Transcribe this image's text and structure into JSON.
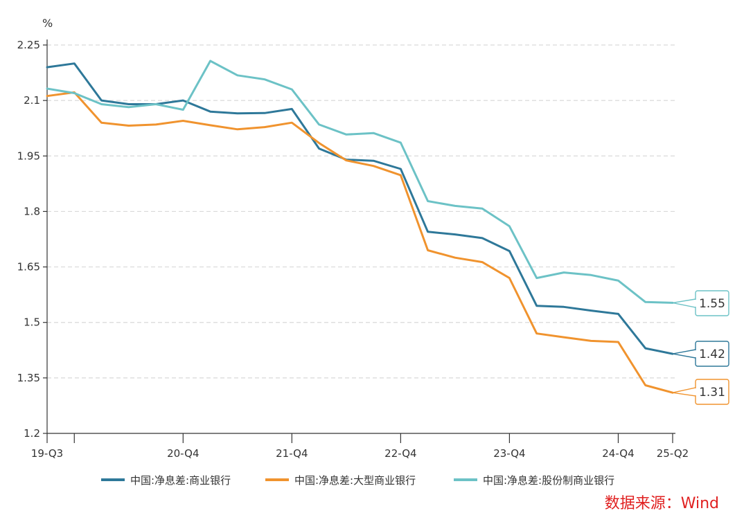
{
  "chart_data": {
    "type": "line",
    "title": "",
    "xlabel": "",
    "ylabel": "",
    "y_unit": "%",
    "ylim": [
      1.2,
      2.25
    ],
    "y_ticks": [
      "1.2",
      "1.35",
      "1.5",
      "1.65",
      "1.8",
      "1.95",
      "2.1",
      "2.25"
    ],
    "grid": true,
    "legend_position": "bottom",
    "source": "数据来源：Wind",
    "categories": [
      "19-Q3",
      "19-Q4",
      "20-Q1",
      "20-Q2",
      "20-Q3",
      "20-Q4",
      "21-Q1",
      "21-Q2",
      "21-Q3",
      "21-Q4",
      "22-Q1",
      "22-Q2",
      "22-Q3",
      "22-Q4",
      "23-Q1",
      "23-Q2",
      "23-Q3",
      "23-Q4",
      "24-Q1",
      "24-Q2",
      "24-Q3",
      "24-Q4",
      "25-Q1",
      "25-Q2"
    ],
    "x_tick_labels": [
      {
        "index": 0,
        "label": "19-Q3"
      },
      {
        "index": 1,
        "label": ""
      },
      {
        "index": 5,
        "label": "20-Q4"
      },
      {
        "index": 9,
        "label": "21-Q4"
      },
      {
        "index": 13,
        "label": "22-Q4"
      },
      {
        "index": 17,
        "label": "23-Q4"
      },
      {
        "index": 21,
        "label": "24-Q4"
      },
      {
        "index": 23,
        "label": "25-Q2"
      }
    ],
    "series": [
      {
        "name": "中国:净息差:商业银行",
        "color": "#2e7899",
        "values": [
          2.19,
          2.2,
          2.1,
          2.09,
          2.09,
          2.1,
          2.07,
          2.065,
          2.066,
          2.077,
          1.97,
          1.94,
          1.937,
          1.915,
          1.745,
          1.738,
          1.728,
          1.693,
          1.545,
          1.542,
          1.532,
          1.523,
          1.43,
          1.415
        ],
        "end_label": "1.42"
      },
      {
        "name": "中国:净息差:大型商业银行",
        "color": "#f0932e",
        "values": [
          2.112,
          2.122,
          2.04,
          2.032,
          2.035,
          2.045,
          2.033,
          2.022,
          2.028,
          2.04,
          1.985,
          1.938,
          1.923,
          1.898,
          1.695,
          1.675,
          1.663,
          1.62,
          1.47,
          1.46,
          1.45,
          1.447,
          1.33,
          1.31
        ],
        "end_label": "1.31"
      },
      {
        "name": "中国:净息差:股份制商业银行",
        "color": "#6cc2c6",
        "values": [
          2.132,
          2.12,
          2.09,
          2.082,
          2.09,
          2.075,
          2.207,
          2.168,
          2.157,
          2.13,
          2.035,
          2.008,
          2.012,
          1.986,
          1.828,
          1.815,
          1.808,
          1.76,
          1.62,
          1.635,
          1.628,
          1.613,
          1.555,
          1.553
        ],
        "end_label": "1.55"
      }
    ]
  }
}
